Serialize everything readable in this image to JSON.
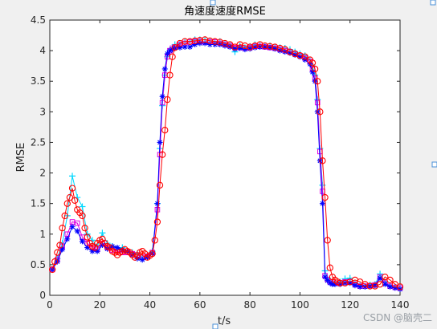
{
  "chart_data": {
    "type": "line",
    "title": "角速度速度RMSE",
    "xlabel": "t/s",
    "ylabel": "RMSE",
    "xlim": [
      0,
      140
    ],
    "ylim": [
      0,
      4.5
    ],
    "xticks": [
      0,
      20,
      40,
      60,
      80,
      100,
      120,
      140
    ],
    "yticks": [
      0,
      0.5,
      1,
      1.5,
      2,
      2.5,
      3,
      3.5,
      4,
      4.5
    ],
    "grid": false,
    "series": [
      {
        "color": "#00d8ff",
        "marker": "plus",
        "x": [
          1,
          3,
          5,
          7,
          9,
          11,
          13,
          15,
          17,
          19,
          21,
          23,
          25,
          27,
          29,
          31,
          33,
          35,
          37,
          39,
          41,
          43,
          44,
          45,
          46,
          47,
          48,
          49,
          50,
          52,
          54,
          56,
          58,
          60,
          62,
          64,
          66,
          68,
          70,
          72,
          74,
          76,
          78,
          80,
          82,
          84,
          86,
          88,
          90,
          92,
          94,
          96,
          98,
          100,
          102,
          104,
          105,
          106,
          107,
          108,
          109,
          110,
          111,
          112,
          113,
          114,
          116,
          118,
          120,
          122,
          124,
          126,
          128,
          130,
          132,
          134,
          136,
          138,
          140
        ],
        "y": [
          0.42,
          0.6,
          0.85,
          1.3,
          1.95,
          1.6,
          1.45,
          1.0,
          0.9,
          0.8,
          1.02,
          0.85,
          0.8,
          0.75,
          0.78,
          0.72,
          0.7,
          0.68,
          0.62,
          0.65,
          0.72,
          1.5,
          2.4,
          3.1,
          3.6,
          3.9,
          4.0,
          4.05,
          4.1,
          4.12,
          4.15,
          4.15,
          4.18,
          4.18,
          4.18,
          4.16,
          4.15,
          4.15,
          4.12,
          4.1,
          3.98,
          4.08,
          4.05,
          4.07,
          4.1,
          4.1,
          4.08,
          4.08,
          4.06,
          4.05,
          4.04,
          4.02,
          3.98,
          3.95,
          3.92,
          3.85,
          3.75,
          3.6,
          3.2,
          2.4,
          1.8,
          0.4,
          0.28,
          0.24,
          0.22,
          0.2,
          0.22,
          0.27,
          0.28,
          0.2,
          0.16,
          0.15,
          0.17,
          0.18,
          0.35,
          0.22,
          0.16,
          0.14,
          0.12
        ]
      },
      {
        "color": "#e000e0",
        "marker": "square",
        "x": [
          1,
          3,
          5,
          7,
          9,
          11,
          13,
          15,
          17,
          19,
          21,
          23,
          25,
          27,
          29,
          31,
          33,
          35,
          37,
          39,
          41,
          43,
          44,
          45,
          46,
          47,
          48,
          49,
          50,
          52,
          54,
          56,
          58,
          60,
          62,
          64,
          66,
          68,
          70,
          72,
          74,
          76,
          78,
          80,
          82,
          84,
          86,
          88,
          90,
          92,
          94,
          96,
          98,
          100,
          102,
          104,
          105,
          106,
          107,
          108,
          109,
          110,
          111,
          112,
          113,
          114,
          116,
          118,
          120,
          122,
          124,
          126,
          128,
          130,
          132,
          134,
          136,
          138,
          140
        ],
        "y": [
          0.42,
          0.58,
          0.8,
          1.0,
          1.2,
          1.18,
          0.95,
          0.85,
          0.78,
          0.75,
          0.85,
          0.78,
          0.74,
          0.72,
          0.7,
          0.7,
          0.68,
          0.66,
          0.62,
          0.64,
          0.7,
          1.4,
          2.3,
          3.15,
          3.6,
          3.9,
          4.0,
          4.04,
          4.06,
          4.1,
          4.12,
          4.14,
          4.15,
          4.15,
          4.14,
          4.14,
          4.14,
          4.12,
          4.1,
          4.08,
          4.05,
          4.05,
          4.04,
          4.05,
          4.07,
          4.07,
          4.06,
          4.05,
          4.04,
          4.02,
          4.0,
          3.98,
          3.95,
          3.92,
          3.88,
          3.82,
          3.7,
          3.55,
          3.15,
          2.35,
          1.7,
          0.32,
          0.26,
          0.22,
          0.2,
          0.2,
          0.2,
          0.22,
          0.22,
          0.18,
          0.15,
          0.15,
          0.16,
          0.17,
          0.3,
          0.2,
          0.15,
          0.13,
          0.12
        ]
      },
      {
        "color": "#0000ff",
        "marker": "asterisk",
        "x": [
          1,
          3,
          5,
          7,
          9,
          11,
          13,
          15,
          17,
          19,
          21,
          23,
          25,
          27,
          29,
          31,
          33,
          35,
          37,
          39,
          41,
          43,
          44,
          45,
          46,
          47,
          48,
          49,
          50,
          52,
          54,
          56,
          58,
          60,
          62,
          64,
          66,
          68,
          70,
          72,
          74,
          76,
          78,
          80,
          82,
          84,
          86,
          88,
          90,
          92,
          94,
          96,
          98,
          100,
          102,
          104,
          105,
          106,
          107,
          108,
          109,
          110,
          111,
          112,
          113,
          114,
          116,
          118,
          120,
          122,
          124,
          126,
          128,
          130,
          132,
          134,
          136,
          138,
          140
        ],
        "y": [
          0.42,
          0.55,
          0.75,
          0.92,
          1.12,
          1.05,
          0.88,
          0.78,
          0.72,
          0.72,
          0.82,
          0.76,
          0.8,
          0.78,
          0.74,
          0.72,
          0.66,
          0.6,
          0.58,
          0.62,
          0.68,
          1.5,
          2.5,
          3.25,
          3.7,
          3.95,
          4.0,
          4.02,
          4.04,
          4.05,
          4.06,
          4.06,
          4.1,
          4.12,
          4.12,
          4.1,
          4.1,
          4.1,
          4.08,
          4.06,
          4.03,
          4.04,
          4.02,
          4.03,
          4.05,
          4.06,
          4.06,
          4.05,
          4.03,
          4.0,
          3.98,
          3.96,
          3.93,
          3.9,
          3.85,
          3.78,
          3.65,
          3.5,
          3.0,
          2.2,
          1.5,
          0.3,
          0.24,
          0.2,
          0.18,
          0.18,
          0.18,
          0.2,
          0.2,
          0.16,
          0.14,
          0.14,
          0.15,
          0.16,
          0.28,
          0.18,
          0.14,
          0.12,
          0.1
        ]
      },
      {
        "color": "#ff0000",
        "marker": "circle",
        "x": [
          1,
          2,
          3,
          4,
          5,
          6,
          7,
          8,
          9,
          10,
          11,
          12,
          13,
          14,
          15,
          16,
          17,
          18,
          19,
          20,
          21,
          22,
          23,
          24,
          25,
          26,
          27,
          28,
          29,
          30,
          31,
          32,
          33,
          34,
          35,
          36,
          37,
          38,
          39,
          40,
          41,
          42,
          43,
          44,
          45,
          46,
          47,
          48,
          49,
          50,
          52,
          54,
          56,
          58,
          60,
          62,
          64,
          66,
          68,
          70,
          72,
          74,
          76,
          78,
          80,
          82,
          84,
          86,
          88,
          90,
          92,
          94,
          96,
          98,
          100,
          102,
          104,
          105,
          106,
          107,
          108,
          109,
          110,
          111,
          112,
          113,
          114,
          115,
          116,
          118,
          120,
          122,
          124,
          126,
          128,
          130,
          132,
          134,
          136,
          138,
          140
        ],
        "y": [
          0.42,
          0.55,
          0.7,
          0.82,
          1.1,
          1.3,
          1.5,
          1.6,
          1.75,
          1.55,
          1.4,
          1.35,
          1.3,
          1.1,
          0.95,
          0.85,
          0.8,
          0.78,
          0.85,
          0.9,
          0.92,
          0.85,
          0.8,
          0.78,
          0.72,
          0.7,
          0.66,
          0.7,
          0.72,
          0.75,
          0.72,
          0.7,
          0.66,
          0.62,
          0.65,
          0.7,
          0.72,
          0.68,
          0.62,
          0.65,
          0.68,
          0.9,
          1.2,
          1.8,
          2.3,
          2.7,
          3.2,
          3.6,
          3.9,
          4.05,
          4.12,
          4.15,
          4.15,
          4.16,
          4.17,
          4.18,
          4.16,
          4.15,
          4.14,
          4.12,
          4.1,
          4.06,
          4.1,
          4.08,
          4.06,
          4.08,
          4.1,
          4.08,
          4.07,
          4.06,
          4.04,
          4.02,
          3.98,
          3.95,
          3.92,
          3.9,
          3.85,
          3.8,
          3.7,
          3.5,
          3.0,
          2.2,
          1.6,
          0.9,
          0.45,
          0.3,
          0.25,
          0.22,
          0.2,
          0.2,
          0.22,
          0.25,
          0.22,
          0.18,
          0.15,
          0.15,
          0.18,
          0.3,
          0.25,
          0.18,
          0.14
        ]
      }
    ]
  },
  "watermark": "CSDN @脑壳二",
  "colors": {
    "axes_bg": "#ffffff",
    "figure_bg": "#f0f0f0",
    "axis_line": "#262626",
    "handle_stroke": "#4a90d9"
  }
}
